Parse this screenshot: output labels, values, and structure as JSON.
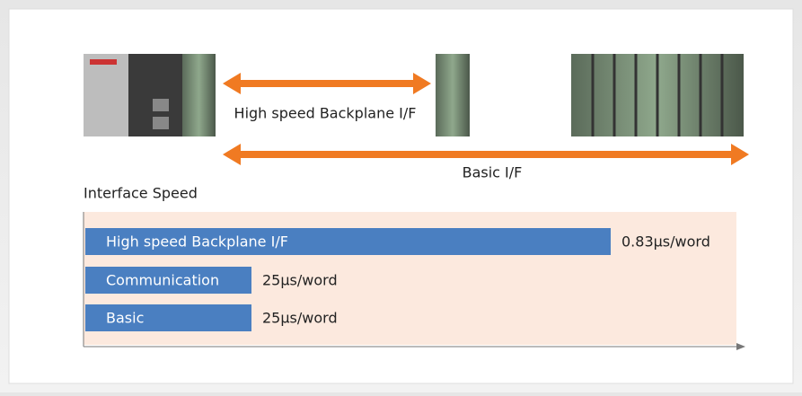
{
  "diagram": {
    "top_link": "High speed Backplane I/F",
    "bottom_link": "Basic I/F",
    "speed_title": "Interface Speed",
    "rows": [
      {
        "label": "High speed Backplane I/F",
        "speed": "0.83μs/word"
      },
      {
        "label": "Communication",
        "speed": "25μs/word"
      },
      {
        "label": "Basic",
        "speed": "25μs/word"
      }
    ]
  }
}
